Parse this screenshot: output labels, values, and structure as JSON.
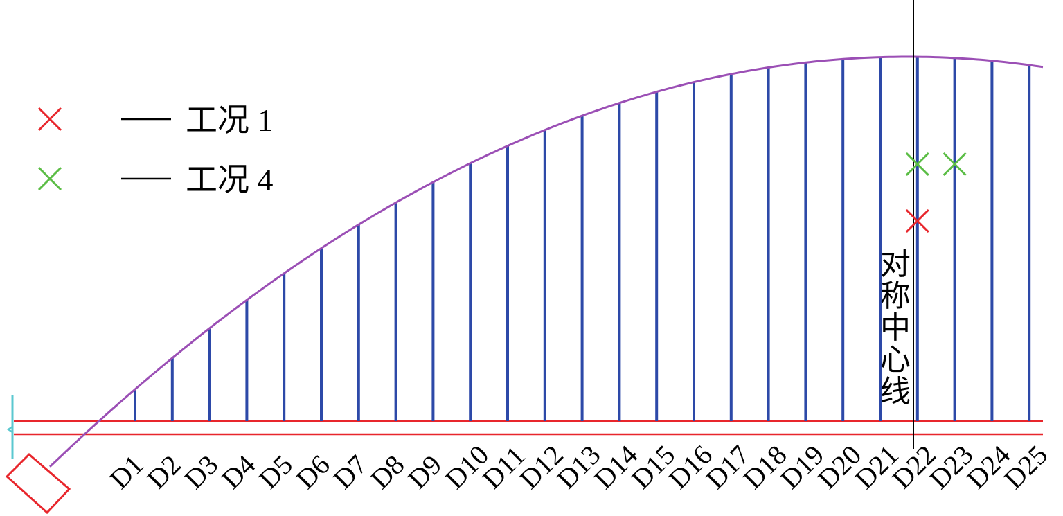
{
  "legend": [
    {
      "marker_color": "#e8262c",
      "label": "工况 1"
    },
    {
      "marker_color": "#5bbd45",
      "label": "工况 4"
    }
  ],
  "hangers": [
    "D1",
    "D2",
    "D3",
    "D4",
    "D5",
    "D6",
    "D7",
    "D8",
    "D9",
    "D10",
    "D11",
    "D12",
    "D13",
    "D14",
    "D15",
    "D16",
    "D17",
    "D18",
    "D19",
    "D20",
    "D21",
    "D22",
    "D23",
    "D24",
    "D25"
  ],
  "centerline_label": [
    "对",
    "称",
    "中",
    "心",
    "线"
  ],
  "colors": {
    "arch": "#9b4fb5",
    "hanger": "#2d49a8",
    "deck": "#e8262c",
    "centerline": "#000000",
    "support": "#e8262c",
    "bearing": "#5bc8d0",
    "case1": "#e8262c",
    "case4": "#5bbd45"
  },
  "markers": [
    {
      "case": "case4",
      "hanger": "D22"
    },
    {
      "case": "case4",
      "hanger": "D23"
    },
    {
      "case": "case1",
      "hanger": "D22"
    }
  ]
}
